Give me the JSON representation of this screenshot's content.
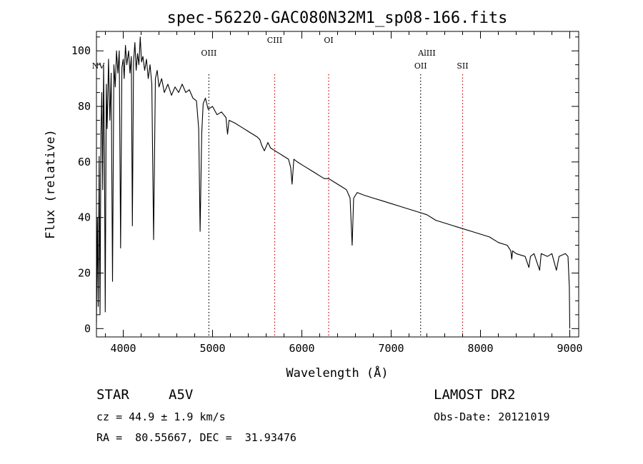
{
  "chart_data": {
    "type": "line",
    "title": "spec-56220-GAC080N32M1_sp08-166.fits",
    "xlabel": "Wavelength (Å)",
    "ylabel": "Flux (relative)",
    "xlim": [
      3700,
      9100
    ],
    "ylim": [
      -3,
      107
    ],
    "xticks": [
      4000,
      5000,
      6000,
      7000,
      8000,
      9000
    ],
    "yticks": [
      0,
      20,
      40,
      60,
      80,
      100
    ],
    "grid": false,
    "line_color": "#000000",
    "series": [
      {
        "points": [
          [
            3700,
            2
          ],
          [
            3710,
            40
          ],
          [
            3720,
            8
          ],
          [
            3730,
            62
          ],
          [
            3740,
            5
          ],
          [
            3750,
            70
          ],
          [
            3760,
            85
          ],
          [
            3770,
            50
          ],
          [
            3780,
            95
          ],
          [
            3790,
            60
          ],
          [
            3798,
            6
          ],
          [
            3810,
            88
          ],
          [
            3820,
            72
          ],
          [
            3835,
            97
          ],
          [
            3850,
            75
          ],
          [
            3865,
            92
          ],
          [
            3880,
            17
          ],
          [
            3895,
            95
          ],
          [
            3910,
            87
          ],
          [
            3925,
            100
          ],
          [
            3940,
            92
          ],
          [
            3955,
            100
          ],
          [
            3970,
            29
          ],
          [
            3985,
            94
          ],
          [
            4000,
            97
          ],
          [
            4010,
            90
          ],
          [
            4025,
            102
          ],
          [
            4040,
            95
          ],
          [
            4060,
            100
          ],
          [
            4075,
            92
          ],
          [
            4090,
            98
          ],
          [
            4102,
            37
          ],
          [
            4115,
            96
          ],
          [
            4130,
            103
          ],
          [
            4145,
            93
          ],
          [
            4160,
            99
          ],
          [
            4175,
            95
          ],
          [
            4190,
            105
          ],
          [
            4205,
            96
          ],
          [
            4220,
            98
          ],
          [
            4240,
            93
          ],
          [
            4260,
            97
          ],
          [
            4280,
            90
          ],
          [
            4300,
            95
          ],
          [
            4320,
            88
          ],
          [
            4340,
            32
          ],
          [
            4360,
            90
          ],
          [
            4380,
            93
          ],
          [
            4400,
            87
          ],
          [
            4430,
            90
          ],
          [
            4460,
            85
          ],
          [
            4500,
            88
          ],
          [
            4540,
            84
          ],
          [
            4580,
            87
          ],
          [
            4620,
            85
          ],
          [
            4660,
            88
          ],
          [
            4700,
            85
          ],
          [
            4740,
            86
          ],
          [
            4780,
            83
          ],
          [
            4820,
            82
          ],
          [
            4845,
            72
          ],
          [
            4861,
            35
          ],
          [
            4878,
            70
          ],
          [
            4895,
            81
          ],
          [
            4920,
            83
          ],
          [
            4950,
            79
          ],
          [
            5000,
            80
          ],
          [
            5050,
            77
          ],
          [
            5100,
            78
          ],
          [
            5150,
            76
          ],
          [
            5168,
            70
          ],
          [
            5185,
            75
          ],
          [
            5250,
            74
          ],
          [
            5300,
            73
          ],
          [
            5350,
            72
          ],
          [
            5400,
            71
          ],
          [
            5450,
            70
          ],
          [
            5500,
            69
          ],
          [
            5530,
            68
          ],
          [
            5550,
            66
          ],
          [
            5580,
            64
          ],
          [
            5620,
            67
          ],
          [
            5650,
            65
          ],
          [
            5700,
            64
          ],
          [
            5750,
            63
          ],
          [
            5800,
            62
          ],
          [
            5850,
            61
          ],
          [
            5875,
            58
          ],
          [
            5890,
            52
          ],
          [
            5910,
            61
          ],
          [
            5950,
            60
          ],
          [
            6000,
            59
          ],
          [
            6050,
            58
          ],
          [
            6100,
            57
          ],
          [
            6150,
            56
          ],
          [
            6200,
            55
          ],
          [
            6250,
            54
          ],
          [
            6300,
            54
          ],
          [
            6350,
            53
          ],
          [
            6400,
            52
          ],
          [
            6450,
            51
          ],
          [
            6500,
            50
          ],
          [
            6540,
            47
          ],
          [
            6563,
            30
          ],
          [
            6580,
            47
          ],
          [
            6620,
            49
          ],
          [
            6700,
            48
          ],
          [
            6800,
            47
          ],
          [
            6900,
            46
          ],
          [
            7000,
            45
          ],
          [
            7100,
            44
          ],
          [
            7200,
            43
          ],
          [
            7300,
            42
          ],
          [
            7400,
            41
          ],
          [
            7500,
            39
          ],
          [
            7600,
            38
          ],
          [
            7700,
            37
          ],
          [
            7800,
            36
          ],
          [
            7900,
            35
          ],
          [
            8000,
            34
          ],
          [
            8100,
            33
          ],
          [
            8200,
            31
          ],
          [
            8300,
            30
          ],
          [
            8340,
            28
          ],
          [
            8350,
            25
          ],
          [
            8360,
            28
          ],
          [
            8400,
            27
          ],
          [
            8500,
            26
          ],
          [
            8542,
            22
          ],
          [
            8560,
            26
          ],
          [
            8600,
            27
          ],
          [
            8662,
            21
          ],
          [
            8680,
            27
          ],
          [
            8750,
            26
          ],
          [
            8800,
            27
          ],
          [
            8850,
            21
          ],
          [
            8880,
            26
          ],
          [
            8950,
            27
          ],
          [
            8980,
            26
          ],
          [
            8995,
            15
          ],
          [
            9000,
            0
          ]
        ]
      }
    ],
    "line_markers": [
      {
        "label": "NV",
        "x": 3720,
        "labelRow": 2,
        "lineColor": "#000000",
        "showLine": false
      },
      {
        "label": "OIII",
        "x": 4959,
        "labelRow": 1,
        "lineColor": "#000000",
        "showLine": true
      },
      {
        "label": "CIII",
        "x": 5696,
        "labelRow": 0,
        "lineColor": "#cc0000",
        "showLine": true
      },
      {
        "label": "OI",
        "x": 6300,
        "labelRow": 0,
        "lineColor": "#cc0000",
        "showLine": true
      },
      {
        "label": "AlIII",
        "x": 7400,
        "labelRow": 1,
        "lineColor": "#000000",
        "showLine": false
      },
      {
        "label": "OII",
        "x": 7330,
        "labelRow": 2,
        "lineColor": "#000000",
        "showLine": true
      },
      {
        "label": "SII",
        "x": 7800,
        "labelRow": 2,
        "lineColor": "#cc0000",
        "showLine": true
      }
    ]
  },
  "info": {
    "object_class": "STAR",
    "subclass": "A5V",
    "survey": "LAMOST DR2",
    "redshift": "cz = 44.9 ± 1.9 km/s",
    "obs_date": "Obs-Date: 20121019",
    "coords": "RA =  80.55667, DEC =  31.93476"
  }
}
